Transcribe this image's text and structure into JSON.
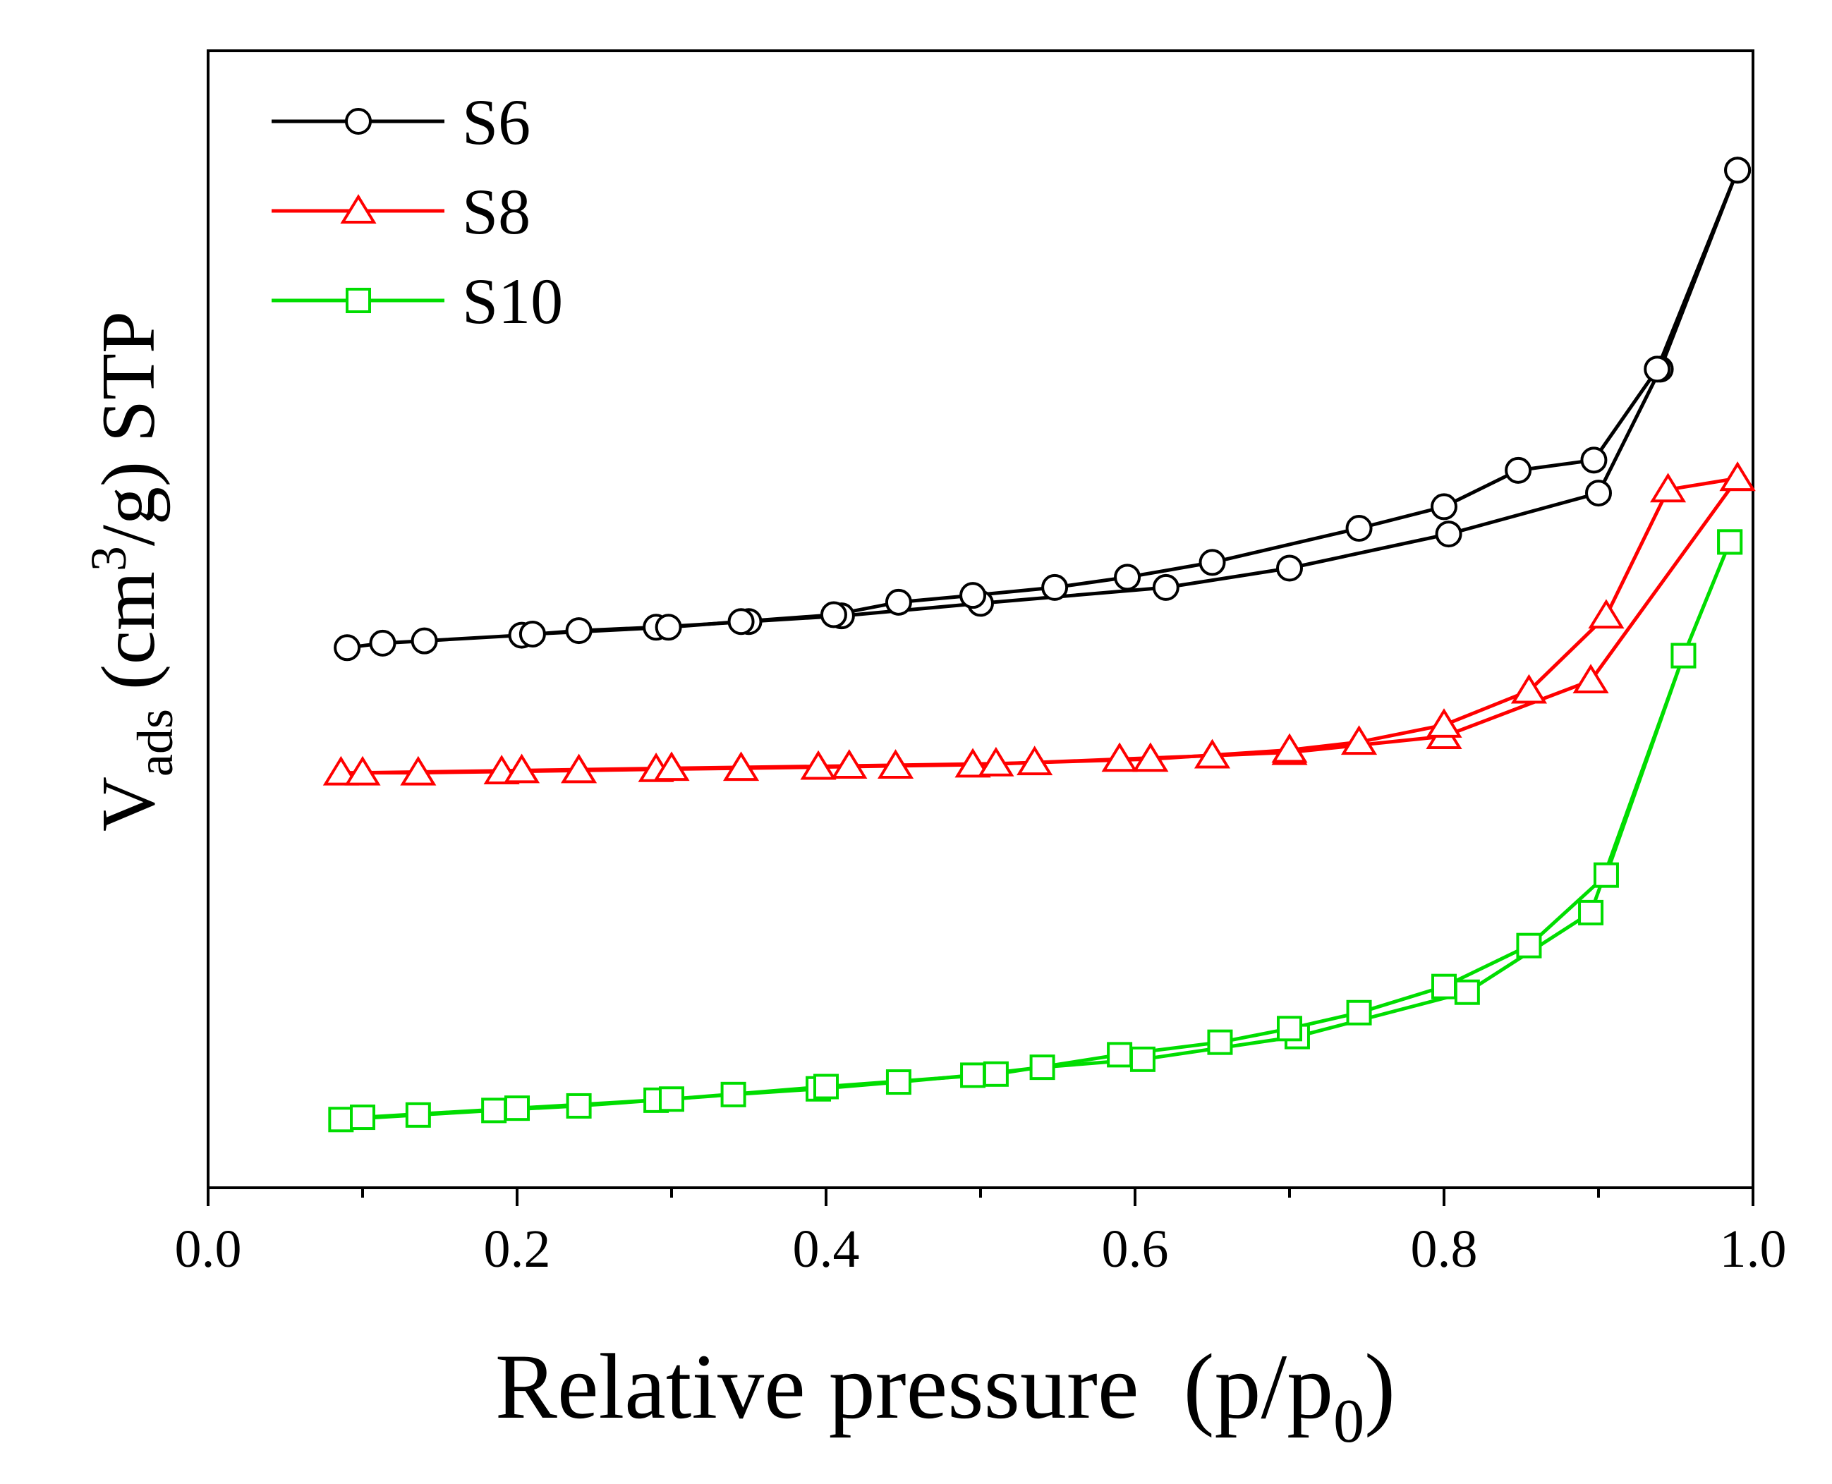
{
  "chart_data": {
    "type": "line",
    "title": "",
    "xlabel": "Relative pressure",
    "xlabel_suffix": "(p/p",
    "xlabel_sub": "0",
    "xlabel_end": ")",
    "ylabel": {
      "main": "V",
      "sub": "ads",
      "unit_pre": " (cm",
      "sup": "3",
      "unit_post": "/g) STP"
    },
    "xlim": [
      0.0,
      1.0
    ],
    "ylim": [
      0,
      100
    ],
    "x_ticks": [
      "0.0",
      "0.2",
      "0.4",
      "0.6",
      "0.8",
      "1.0"
    ],
    "y_ticks_shown": false,
    "legend_position": "top-left",
    "series": [
      {
        "name": "S6",
        "color": "#000000",
        "marker": "circle",
        "adsorption": [
          [
            0.09,
            47.5
          ],
          [
            0.113,
            47.9
          ],
          [
            0.14,
            48.1
          ],
          [
            0.203,
            48.6
          ],
          [
            0.24,
            49.0
          ],
          [
            0.29,
            49.3
          ],
          [
            0.35,
            49.8
          ],
          [
            0.41,
            50.3
          ],
          [
            0.5,
            51.4
          ],
          [
            0.62,
            52.8
          ],
          [
            0.7,
            54.5
          ],
          [
            0.803,
            57.5
          ],
          [
            0.9,
            61.1
          ],
          [
            0.94,
            72.0
          ],
          [
            0.99,
            89.5
          ]
        ],
        "desorption": [
          [
            0.99,
            89.5
          ],
          [
            0.938,
            72.0
          ],
          [
            0.897,
            64.0
          ],
          [
            0.848,
            63.1
          ],
          [
            0.8,
            59.9
          ],
          [
            0.745,
            58.0
          ],
          [
            0.65,
            55.0
          ],
          [
            0.595,
            53.7
          ],
          [
            0.548,
            52.8
          ],
          [
            0.495,
            52.1
          ],
          [
            0.447,
            51.5
          ],
          [
            0.405,
            50.4
          ],
          [
            0.345,
            49.8
          ],
          [
            0.298,
            49.3
          ],
          [
            0.21,
            48.7
          ]
        ]
      },
      {
        "name": "S8",
        "color": "#ff0000",
        "marker": "triangle",
        "adsorption": [
          [
            0.086,
            36.5
          ],
          [
            0.136,
            36.5
          ],
          [
            0.19,
            36.6
          ],
          [
            0.24,
            36.7
          ],
          [
            0.29,
            36.8
          ],
          [
            0.345,
            36.9
          ],
          [
            0.395,
            37.0
          ],
          [
            0.445,
            37.1
          ],
          [
            0.495,
            37.2
          ],
          [
            0.535,
            37.4
          ],
          [
            0.59,
            37.7
          ],
          [
            0.65,
            38.0
          ],
          [
            0.7,
            38.3
          ],
          [
            0.8,
            39.7
          ],
          [
            0.895,
            44.6
          ],
          [
            0.99,
            62.4
          ]
        ],
        "desorption": [
          [
            0.99,
            62.4
          ],
          [
            0.945,
            61.4
          ],
          [
            0.905,
            50.3
          ],
          [
            0.855,
            43.7
          ],
          [
            0.8,
            40.7
          ],
          [
            0.745,
            39.2
          ],
          [
            0.7,
            38.5
          ],
          [
            0.61,
            37.7
          ],
          [
            0.51,
            37.3
          ],
          [
            0.415,
            37.1
          ],
          [
            0.3,
            36.9
          ],
          [
            0.203,
            36.7
          ],
          [
            0.1,
            36.5
          ]
        ]
      },
      {
        "name": "S10",
        "color": "#00dd00",
        "marker": "square",
        "adsorption": [
          [
            0.086,
            6.0
          ],
          [
            0.136,
            6.4
          ],
          [
            0.185,
            6.8
          ],
          [
            0.24,
            7.2
          ],
          [
            0.29,
            7.7
          ],
          [
            0.34,
            8.2
          ],
          [
            0.395,
            8.7
          ],
          [
            0.447,
            9.3
          ],
          [
            0.495,
            9.9
          ],
          [
            0.54,
            10.6
          ],
          [
            0.605,
            11.3
          ],
          [
            0.705,
            13.3
          ],
          [
            0.815,
            17.2
          ],
          [
            0.895,
            24.2
          ],
          [
            0.955,
            46.8
          ],
          [
            0.985,
            56.8
          ]
        ],
        "desorption": [
          [
            0.985,
            56.8
          ],
          [
            0.955,
            46.8
          ],
          [
            0.905,
            27.5
          ],
          [
            0.855,
            21.3
          ],
          [
            0.8,
            17.7
          ],
          [
            0.745,
            15.4
          ],
          [
            0.7,
            14.0
          ],
          [
            0.655,
            12.8
          ],
          [
            0.59,
            11.7
          ],
          [
            0.51,
            10.0
          ],
          [
            0.4,
            8.9
          ],
          [
            0.3,
            7.8
          ],
          [
            0.2,
            7.0
          ],
          [
            0.1,
            6.2
          ]
        ]
      }
    ]
  }
}
